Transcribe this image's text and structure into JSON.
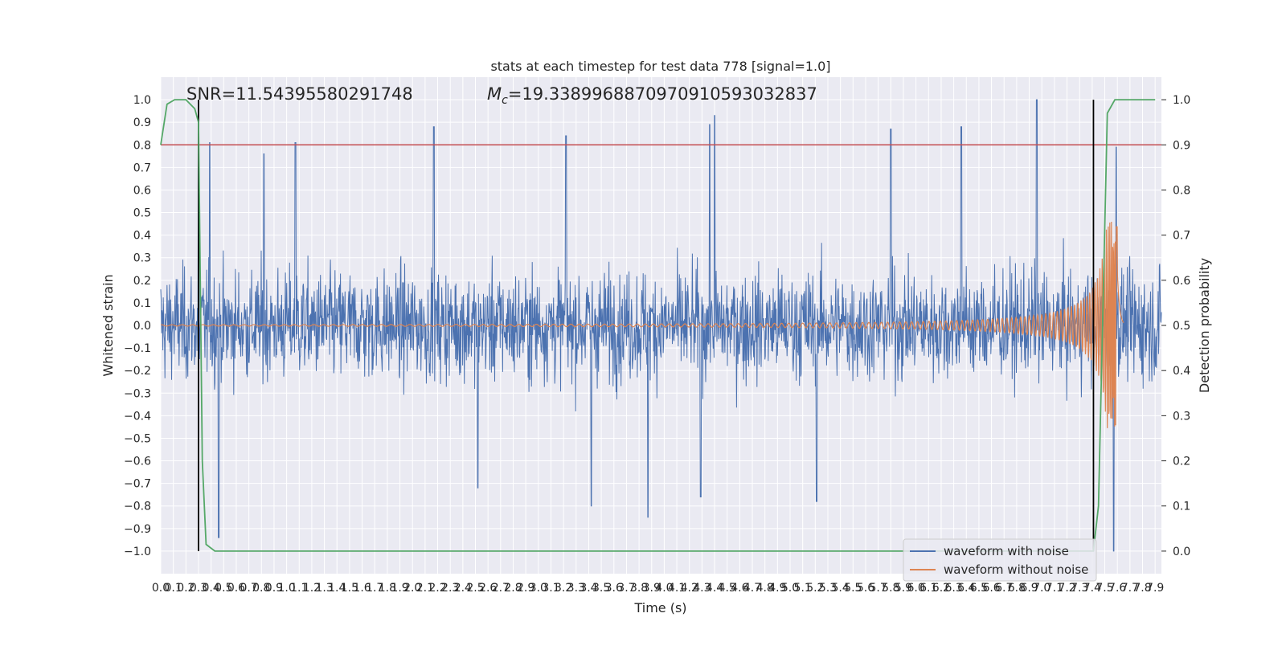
{
  "chart_data": {
    "type": "line",
    "title": "stats at each timestep for test data 778 [signal=1.0]",
    "xlabel": "Time (s)",
    "ylabel": "Whitened strain",
    "ylabel_right": "Detection probability",
    "xlim": [
      0,
      7.95
    ],
    "ylim": [
      -1.1,
      1.1
    ],
    "ylim_right": [
      -0.05,
      1.05
    ],
    "x_ticks": [
      "0.0",
      "0.1",
      "0.2",
      "0.3",
      "0.4",
      "0.5",
      "0.6",
      "0.7",
      "0.8",
      "0.9",
      "1.0",
      "1.1",
      "1.2",
      "1.3",
      "1.4",
      "1.5",
      "1.6",
      "1.7",
      "1.8",
      "1.9",
      "2.0",
      "2.1",
      "2.2",
      "2.3",
      "2.4",
      "2.5",
      "2.6",
      "2.7",
      "2.8",
      "2.9",
      "3.0",
      "3.1",
      "3.2",
      "3.3",
      "3.4",
      "3.5",
      "3.6",
      "3.7",
      "3.8",
      "3.9",
      "4.0",
      "4.1",
      "4.2",
      "4.3",
      "4.4",
      "4.5",
      "4.6",
      "4.7",
      "4.8",
      "4.9",
      "5.0",
      "5.1",
      "5.2",
      "5.3",
      "5.4",
      "5.5",
      "5.6",
      "5.7",
      "5.8",
      "5.9",
      "6.0",
      "6.1",
      "6.2",
      "6.3",
      "6.4",
      "6.5",
      "6.6",
      "6.7",
      "6.8",
      "6.9",
      "7.0",
      "7.1",
      "7.2",
      "7.3",
      "7.4",
      "7.5",
      "7.6",
      "7.7",
      "7.8",
      "7.9"
    ],
    "y_ticks": [
      "−1.0",
      "−0.9",
      "−0.8",
      "−0.7",
      "−0.6",
      "−0.5",
      "−0.4",
      "−0.3",
      "−0.2",
      "−0.1",
      "0.0",
      "0.1",
      "0.2",
      "0.3",
      "0.4",
      "0.5",
      "0.6",
      "0.7",
      "0.8",
      "0.9",
      "1.0"
    ],
    "y_ticks_right": [
      "0.0",
      "0.1",
      "0.2",
      "0.3",
      "0.4",
      "0.5",
      "0.6",
      "0.7",
      "0.8",
      "0.9",
      "1.0"
    ],
    "annotations": {
      "snr": "SNR=11.54395580291748",
      "mc_symbol": "M",
      "mc_sub": "c",
      "mc_value": "=19.3389968870970910593032837"
    },
    "series": [
      {
        "name": "waveform with noise",
        "color": "#4c72b0",
        "axis": "left",
        "style": "noise",
        "x_range": [
          0,
          7.95
        ],
        "typical_envelope": [
          -0.42,
          0.45
        ],
        "peaks": [
          {
            "x": 0.3,
            "y": 0.7
          },
          {
            "x": 0.39,
            "y": 0.81
          },
          {
            "x": 0.82,
            "y": 0.76
          },
          {
            "x": 1.07,
            "y": 0.81
          },
          {
            "x": 2.17,
            "y": 0.88
          },
          {
            "x": 3.22,
            "y": 0.84
          },
          {
            "x": 4.36,
            "y": 0.89
          },
          {
            "x": 4.4,
            "y": 0.93
          },
          {
            "x": 5.8,
            "y": 0.87
          },
          {
            "x": 6.36,
            "y": 0.88
          },
          {
            "x": 6.96,
            "y": 1.0
          },
          {
            "x": 7.59,
            "y": 0.79
          }
        ],
        "troughs": [
          {
            "x": 0.46,
            "y": -0.94
          },
          {
            "x": 2.52,
            "y": -0.72
          },
          {
            "x": 3.42,
            "y": -0.8
          },
          {
            "x": 3.87,
            "y": -0.85
          },
          {
            "x": 4.29,
            "y": -0.76
          },
          {
            "x": 5.21,
            "y": -0.78
          },
          {
            "x": 7.57,
            "y": -1.0
          }
        ]
      },
      {
        "name": "waveform without noise",
        "color": "#dd8452",
        "axis": "left",
        "style": "chirp",
        "x_range": [
          0,
          7.65
        ],
        "merger_time": 7.59,
        "amplitude_start": 0.003,
        "peak_amplitude": 0.46,
        "frequency_start_hz": 12
      },
      {
        "name": "detection probability",
        "color": "#55a868",
        "axis": "right",
        "x": [
          0.0,
          0.05,
          0.11,
          0.2,
          0.27,
          0.3,
          0.33,
          0.36,
          0.43,
          7.41,
          7.45,
          7.52,
          7.58,
          7.9
        ],
        "y": [
          0.9,
          0.99,
          1.0,
          1.0,
          0.98,
          0.95,
          0.2,
          0.015,
          0.0,
          0.0,
          0.1,
          0.97,
          1.0,
          1.0
        ]
      }
    ],
    "horizontal_lines": [
      {
        "axis": "left",
        "y": 0.8,
        "color": "#c44e52"
      }
    ],
    "vertical_lines": [
      {
        "x": 0.3,
        "y_range": [
          -1.0,
          1.0
        ],
        "color": "#000000"
      },
      {
        "x": 7.41,
        "y_range": [
          -1.0,
          1.0
        ],
        "color": "#000000"
      }
    ],
    "grid": true,
    "background": "#eaeaf2",
    "legend": {
      "placement": "lower-right",
      "entries": [
        "waveform with noise",
        "waveform without noise"
      ]
    }
  }
}
